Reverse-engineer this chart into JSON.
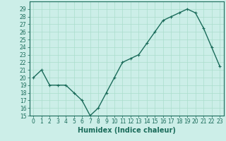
{
  "x": [
    0,
    1,
    2,
    3,
    4,
    5,
    6,
    7,
    8,
    9,
    10,
    11,
    12,
    13,
    14,
    15,
    16,
    17,
    18,
    19,
    20,
    21,
    22,
    23
  ],
  "y": [
    20,
    21,
    19,
    19,
    19,
    18,
    17,
    15,
    16,
    18,
    20,
    22,
    22.5,
    23,
    24.5,
    26,
    27.5,
    28,
    28.5,
    29,
    28.5,
    26.5,
    24,
    21.5
  ],
  "line_color": "#1a6b5a",
  "marker": "+",
  "marker_size": 3,
  "bg_color": "#cceee8",
  "grid_color": "#aaddcc",
  "xlabel": "Humidex (Indice chaleur)",
  "ylim": [
    15,
    30
  ],
  "yticks": [
    15,
    16,
    17,
    18,
    19,
    20,
    21,
    22,
    23,
    24,
    25,
    26,
    27,
    28,
    29
  ],
  "xticks": [
    0,
    1,
    2,
    3,
    4,
    5,
    6,
    7,
    8,
    9,
    10,
    11,
    12,
    13,
    14,
    15,
    16,
    17,
    18,
    19,
    20,
    21,
    22,
    23
  ],
  "xlim": [
    -0.5,
    23.5
  ],
  "tick_fontsize": 5.5,
  "xlabel_fontsize": 7,
  "line_width": 1.0
}
